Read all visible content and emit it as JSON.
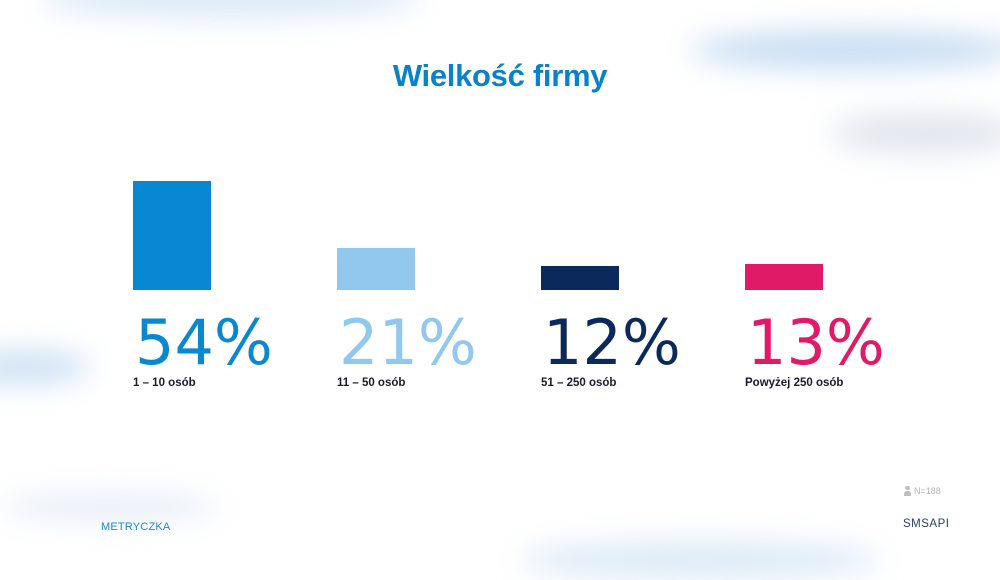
{
  "chart_data": {
    "type": "bar",
    "title": "Wielkość firmy",
    "categories": [
      "1 – 10 osób",
      "11 – 50 osób",
      "51 – 250 osób",
      "Powyżej 250 osób"
    ],
    "values": [
      54,
      21,
      12,
      13
    ],
    "value_labels": [
      "54%",
      "21%",
      "12%",
      "13%"
    ],
    "colors": [
      "#0a87d1",
      "#92c8ee",
      "#0b2a5b",
      "#e01a67"
    ],
    "ylim": [
      0,
      54
    ],
    "grid": false,
    "legend": "none"
  },
  "footer": {
    "sample_label": "N=188",
    "left_brand": "METRYCZKA",
    "right_brand": "SMSAPI"
  },
  "icons": {
    "sample": "person-icon"
  }
}
